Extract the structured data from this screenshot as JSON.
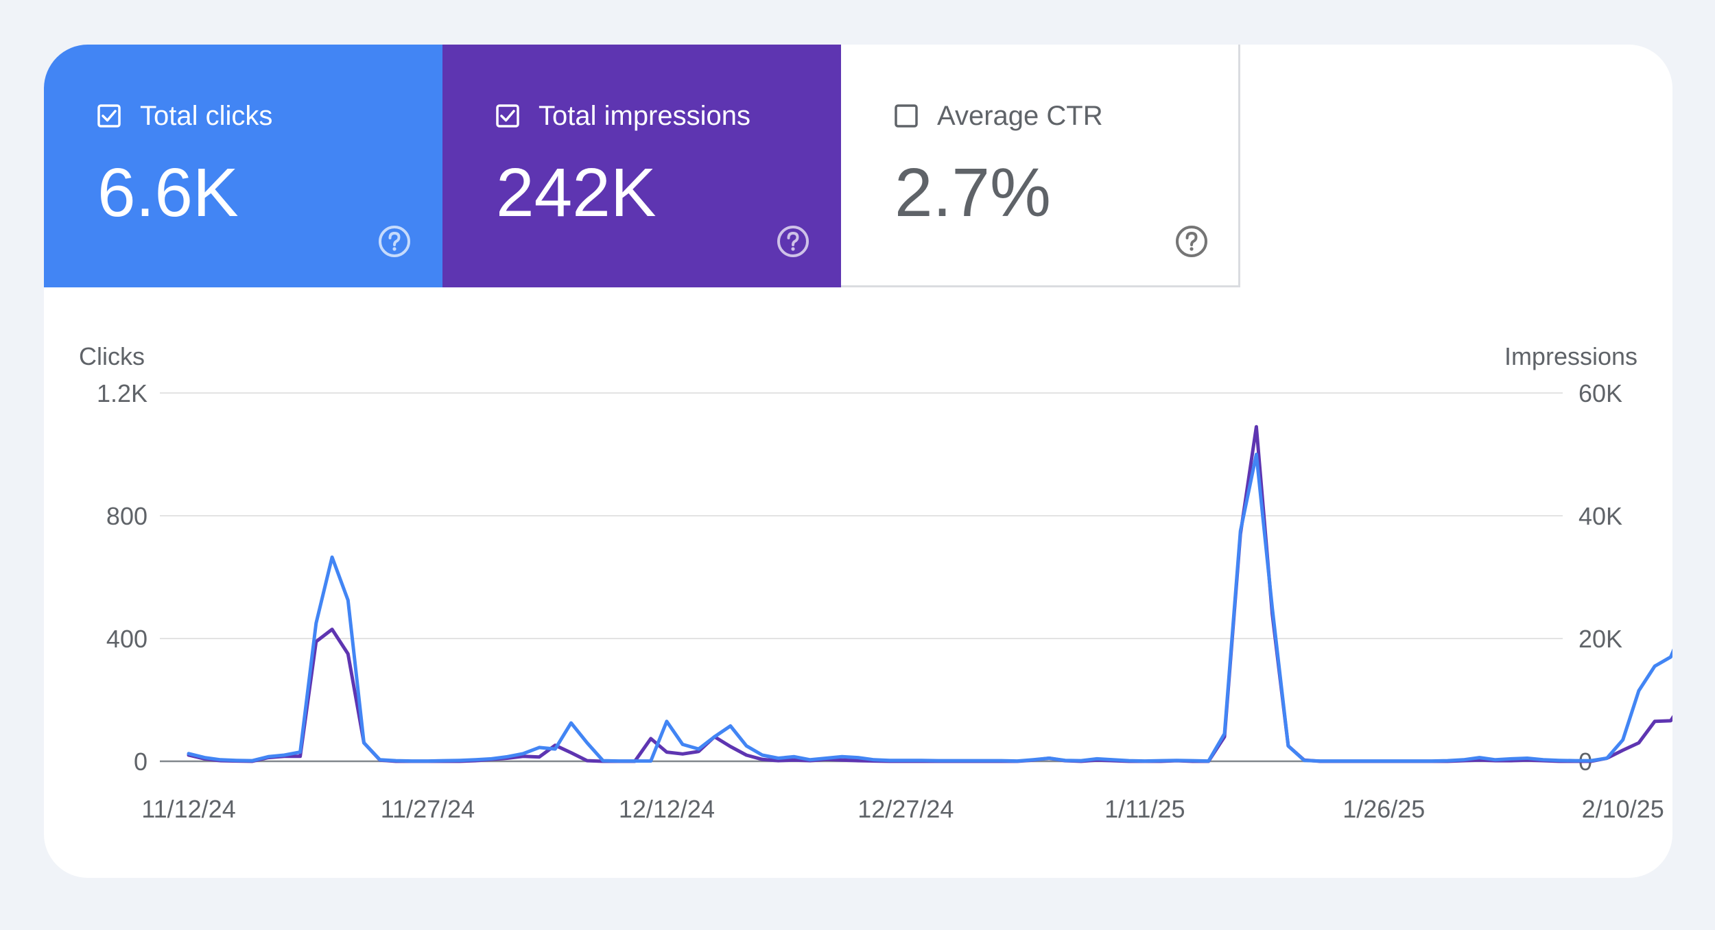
{
  "metrics": {
    "clicks": {
      "label": "Total clicks",
      "value": "6.6K",
      "checked": true,
      "color": "#4285f4"
    },
    "impressions": {
      "label": "Total impressions",
      "value": "242K",
      "checked": true,
      "color": "#5e35b1"
    },
    "ctr": {
      "label": "Average CTR",
      "value": "2.7%",
      "checked": false
    }
  },
  "icons": {
    "checkbox": "checkbox-icon",
    "help": "help-circle-icon"
  },
  "chart_data": {
    "type": "line",
    "ylabel_left": "Clicks",
    "ylabel_right": "Impressions",
    "y_left_ticks": [
      "1.2K",
      "800",
      "400",
      "0"
    ],
    "y_left_tick_values": [
      1200,
      800,
      400,
      0
    ],
    "y_right_ticks": [
      "60K",
      "40K",
      "20K",
      "0"
    ],
    "y_right_tick_values": [
      60000,
      40000,
      20000,
      0
    ],
    "ylim_left": [
      0,
      1200
    ],
    "ylim_right": [
      0,
      60000
    ],
    "x_start": "11/12/24",
    "x_end": "2/10/25",
    "x_ticks": [
      "11/12/24",
      "11/27/24",
      "12/12/24",
      "12/27/24",
      "1/11/25",
      "1/26/25",
      "2/10/25"
    ],
    "grid": true,
    "series": [
      {
        "name": "Clicks",
        "axis": "left",
        "color": "#4285f4",
        "values": [
          25,
          12,
          5,
          3,
          2,
          15,
          20,
          30,
          450,
          665,
          525,
          60,
          5,
          2,
          1,
          1,
          2,
          3,
          5,
          8,
          15,
          25,
          45,
          40,
          125,
          60,
          2,
          1,
          1,
          1,
          130,
          55,
          40,
          80,
          115,
          50,
          20,
          10,
          15,
          5,
          10,
          15,
          12,
          5,
          3,
          3,
          3,
          2,
          2,
          2,
          2,
          2,
          1,
          5,
          10,
          3,
          2,
          8,
          5,
          2,
          1,
          2,
          3,
          2,
          1,
          90,
          750,
          1000,
          500,
          50,
          3,
          1,
          1,
          1,
          1,
          1,
          1,
          1,
          1,
          2,
          5,
          12,
          5,
          8,
          10,
          5,
          3,
          2,
          2,
          10,
          70,
          230,
          310,
          340,
          460
        ]
      },
      {
        "name": "Impressions",
        "axis": "right",
        "color": "#5e35b1",
        "values": [
          1000,
          400,
          100,
          50,
          0,
          600,
          800,
          800,
          19500,
          21500,
          17500,
          3000,
          200,
          0,
          0,
          0,
          0,
          0,
          100,
          300,
          500,
          800,
          700,
          2600,
          1400,
          100,
          0,
          0,
          0,
          3700,
          1500,
          1200,
          1600,
          4000,
          2400,
          1000,
          300,
          100,
          200,
          100,
          300,
          200,
          100,
          50,
          0,
          0,
          0,
          0,
          0,
          0,
          0,
          0,
          0,
          200,
          500,
          100,
          0,
          200,
          100,
          0,
          0,
          0,
          100,
          0,
          0,
          4000,
          37000,
          54500,
          24000,
          2500,
          200,
          0,
          0,
          0,
          0,
          0,
          0,
          0,
          0,
          0,
          100,
          200,
          100,
          100,
          200,
          100,
          0,
          0,
          0,
          500,
          1800,
          3000,
          6500,
          6600,
          10500
        ]
      }
    ]
  }
}
